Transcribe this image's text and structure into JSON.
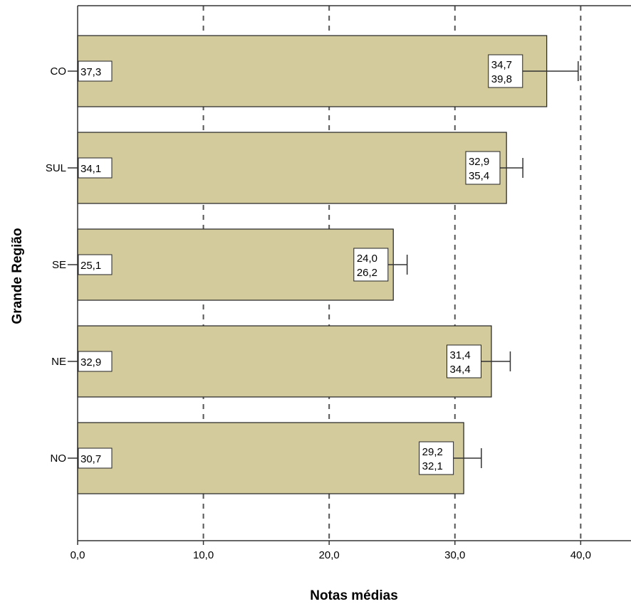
{
  "chart_data": {
    "type": "bar",
    "orientation": "horizontal",
    "categories": [
      "CO",
      "SUL",
      "SE",
      "NE",
      "NO"
    ],
    "values": [
      37.3,
      34.1,
      25.1,
      32.9,
      30.7
    ],
    "value_labels": [
      "37,3",
      "34,1",
      "25,1",
      "32,9",
      "30,7"
    ],
    "ci_lower": [
      34.7,
      32.9,
      24.0,
      31.4,
      29.2
    ],
    "ci_upper": [
      39.8,
      35.4,
      26.2,
      34.4,
      32.1
    ],
    "ci_lower_labels": [
      "34,7",
      "32,9",
      "24,0",
      "31,4",
      "29,2"
    ],
    "ci_upper_labels": [
      "39,8",
      "35,4",
      "26,2",
      "34,4",
      "32,1"
    ],
    "xlabel": "Notas médias",
    "ylabel": "Grande Região",
    "xlim": [
      0,
      44
    ],
    "xticks": [
      0,
      10,
      20,
      30,
      40
    ],
    "xtick_labels": [
      "0,0",
      "10,0",
      "20,0",
      "30,0",
      "40,0"
    ],
    "grid": "vertical dashed",
    "bar_color": "#d3cb9c"
  }
}
